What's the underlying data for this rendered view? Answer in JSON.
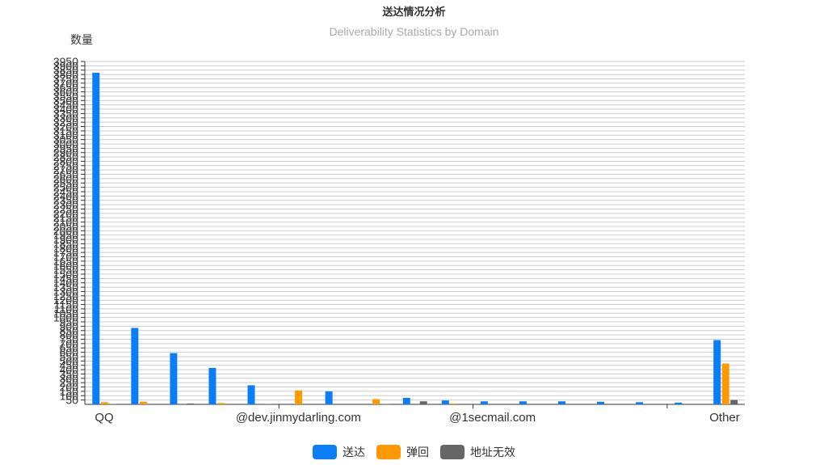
{
  "chart_data": {
    "type": "bar",
    "title": "送达情况分析",
    "subtitle": "Deliverability Statistics by Domain",
    "ylabel": "数量",
    "xlabel": "",
    "ylim": [
      0,
      3950
    ],
    "ytick_step": 50,
    "ytick_labels": [
      "50",
      "100",
      "150",
      "200",
      "250",
      "300",
      "350",
      "400",
      "450",
      "500",
      "550",
      "600",
      "650",
      "700",
      "750",
      "800",
      "850",
      "900",
      "950",
      "1000",
      "1050",
      "1100",
      "1150",
      "1200",
      "1250",
      "1300",
      "1350",
      "1400",
      "1450",
      "1500",
      "1550",
      "1600",
      "1650",
      "1700",
      "1750",
      "1800",
      "1850",
      "1900",
      "1950",
      "2000",
      "2050",
      "2100",
      "2150",
      "2200",
      "2250",
      "2300",
      "2350",
      "2400",
      "2450",
      "2500",
      "2550",
      "2600",
      "2650",
      "2700",
      "2750",
      "2800",
      "2850",
      "2900",
      "2950",
      "3000",
      "3050",
      "3100",
      "3150",
      "3200",
      "3250",
      "3300",
      "3350",
      "3400",
      "3450",
      "3500",
      "3550",
      "3600",
      "3650",
      "3700",
      "3750",
      "3800",
      "3850",
      "3900",
      "3950"
    ],
    "categories": [
      "QQ",
      "",
      "",
      "",
      "",
      "@dev.jinmydarling.com",
      "",
      "",
      "",
      "",
      "@1secmail.com",
      "",
      "",
      "",
      "",
      "",
      "Other"
    ],
    "shown_category_labels": [
      "QQ",
      "@dev.jinmydarling.com",
      "@1secmail.com",
      "Other"
    ],
    "series": [
      {
        "name": "送达",
        "values": [
          3820,
          880,
          590,
          420,
          220,
          0,
          150,
          0,
          75,
          45,
          35,
          35,
          35,
          30,
          25,
          20,
          740
        ]
      },
      {
        "name": "弹回",
        "values": [
          25,
          30,
          0,
          15,
          0,
          160,
          0,
          60,
          0,
          10,
          0,
          0,
          0,
          0,
          0,
          0,
          470
        ]
      },
      {
        "name": "地址无效",
        "values": [
          5,
          0,
          10,
          0,
          5,
          0,
          0,
          5,
          35,
          0,
          0,
          0,
          0,
          0,
          0,
          0,
          50
        ]
      }
    ],
    "colors": [
      "#0a7ff5",
      "#ff9900",
      "#666666"
    ],
    "grid": true,
    "legend_position": "bottom-center"
  }
}
